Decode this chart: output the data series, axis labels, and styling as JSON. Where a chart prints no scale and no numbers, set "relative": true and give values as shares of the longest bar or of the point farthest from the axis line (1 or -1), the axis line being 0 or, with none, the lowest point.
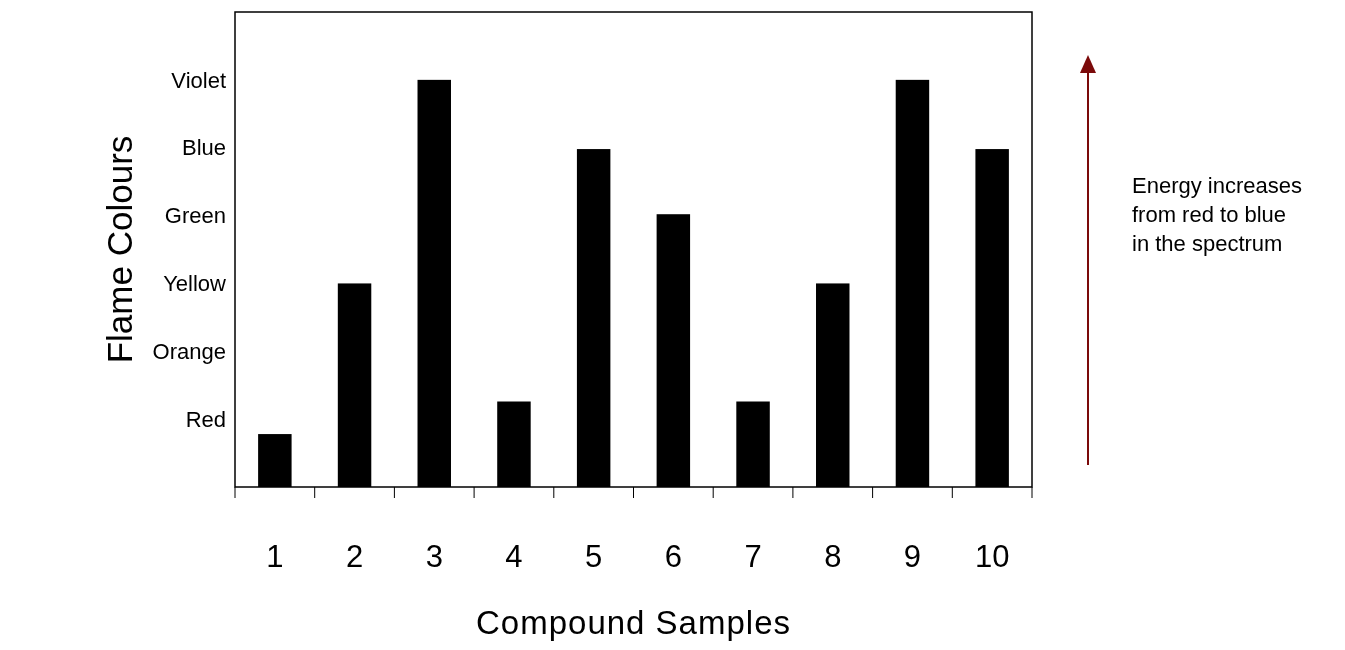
{
  "chart_data": {
    "type": "bar",
    "xlabel": "Compound Samples",
    "ylabel": "Flame Colours",
    "categories": [
      "1",
      "2",
      "3",
      "4",
      "5",
      "6",
      "7",
      "8",
      "9",
      "10"
    ],
    "values": [
      0.13,
      0.5,
      1,
      0.21,
      0.83,
      0.67,
      0.21,
      0.5,
      1,
      0.83
    ],
    "color": "#000000",
    "relative": true,
    "annotations": [
      "Red",
      "Orange",
      "Yellow",
      "Green",
      "Blue",
      "Violet",
      "Energy increases from red to blue in the spectrum"
    ]
  }
}
